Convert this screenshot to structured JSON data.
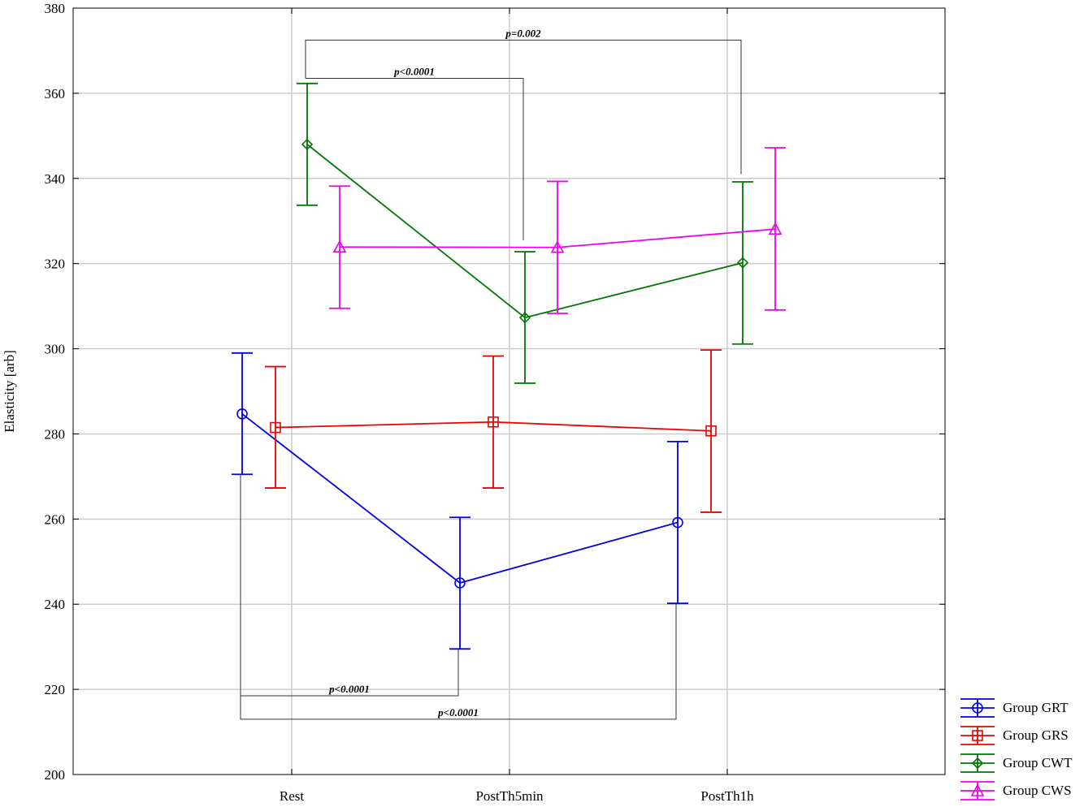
{
  "chart_data": {
    "type": "line",
    "title": "",
    "xlabel": "",
    "ylabel": "Elasticity [arb]",
    "ylim": [
      200,
      380
    ],
    "yticks": [
      200,
      220,
      240,
      260,
      280,
      300,
      320,
      340,
      360,
      380
    ],
    "categories": [
      "Rest",
      "PostTh5min",
      "PostTh1h"
    ],
    "grid": true,
    "legend_position": "bottom-right-outside",
    "series": [
      {
        "name": "Group GRT",
        "color": "#0000ee",
        "marker": "circle",
        "values": [
          284.7,
          245.0,
          259.2
        ],
        "error_low": [
          270.5,
          229.5,
          240.2
        ],
        "error_high": [
          299.0,
          260.4,
          278.2
        ]
      },
      {
        "name": "Group GRS",
        "color": "#ee0000",
        "marker": "square",
        "values": [
          281.5,
          282.8,
          280.7
        ],
        "error_low": [
          267.3,
          267.3,
          261.6
        ],
        "error_high": [
          295.8,
          298.3,
          299.7
        ]
      },
      {
        "name": "Group CWT",
        "color": "#007700",
        "marker": "diamond",
        "values": [
          348.0,
          307.3,
          320.2
        ],
        "error_low": [
          333.7,
          291.9,
          301.1
        ],
        "error_high": [
          362.3,
          322.8,
          339.2
        ]
      },
      {
        "name": "Group CWS",
        "color": "#ee00ee",
        "marker": "triangle",
        "values": [
          323.9,
          323.8,
          328.1
        ],
        "error_low": [
          309.5,
          308.3,
          309.1
        ],
        "error_high": [
          338.2,
          339.3,
          347.2
        ]
      }
    ],
    "annotations": [
      {
        "text": "p=0.002",
        "series": "Group CWT",
        "from": "Rest",
        "to": "PostTh1h",
        "level": 372.5,
        "from_drop": 363.5,
        "to_drop": 341.0
      },
      {
        "text": "p<0.0001",
        "series": "Group CWT",
        "from": "Rest",
        "to": "PostTh5min",
        "level": 363.5,
        "from_drop": 363.5,
        "to_drop": 325.5
      },
      {
        "text": "p<0.0001",
        "series": "Group GRT",
        "from": "Rest",
        "to": "PostTh5min",
        "level": 218.5,
        "from_drop": 270.5,
        "to_drop": 229.5
      },
      {
        "text": "p<0.0001",
        "series": "Group GRT",
        "from": "Rest",
        "to": "PostTh1h",
        "level": 213.0,
        "from_drop": 270.5,
        "to_drop": 240.2
      }
    ]
  }
}
